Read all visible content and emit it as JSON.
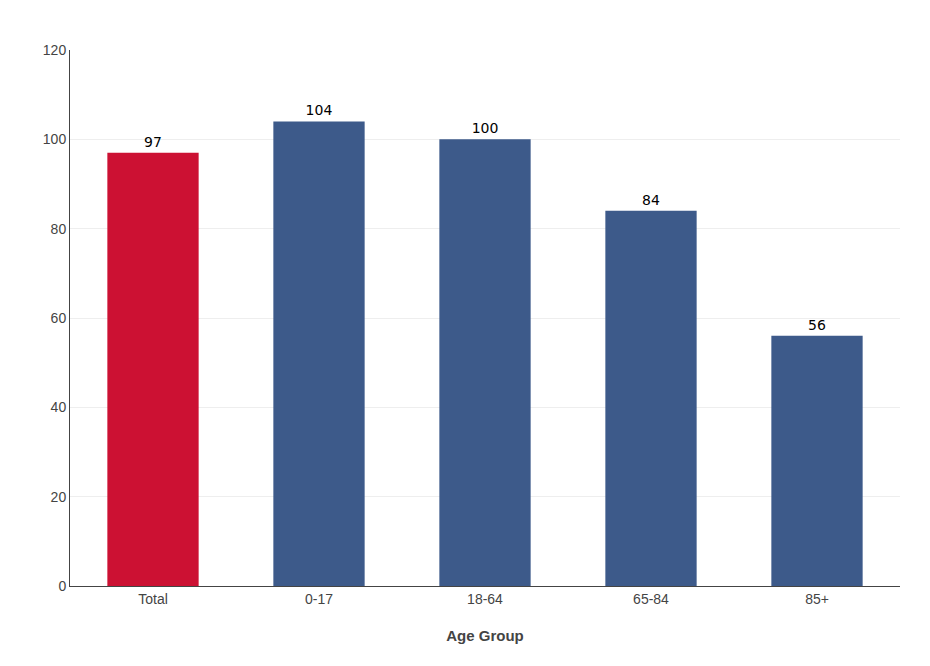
{
  "chart_data": {
    "type": "bar",
    "xlabel": "Age Group",
    "categories": [
      "Total",
      "0-17",
      "18-64",
      "65-84",
      "85+"
    ],
    "values": [
      97,
      104,
      100,
      84,
      56
    ],
    "colors": [
      "#cc1133",
      "#3d5a8a",
      "#3d5a8a",
      "#3d5a8a",
      "#3d5a8a"
    ],
    "ylim": [
      0,
      120
    ],
    "yticks": [
      0,
      20,
      40,
      60,
      80,
      100,
      120
    ],
    "grid": true,
    "data_labels": true
  }
}
